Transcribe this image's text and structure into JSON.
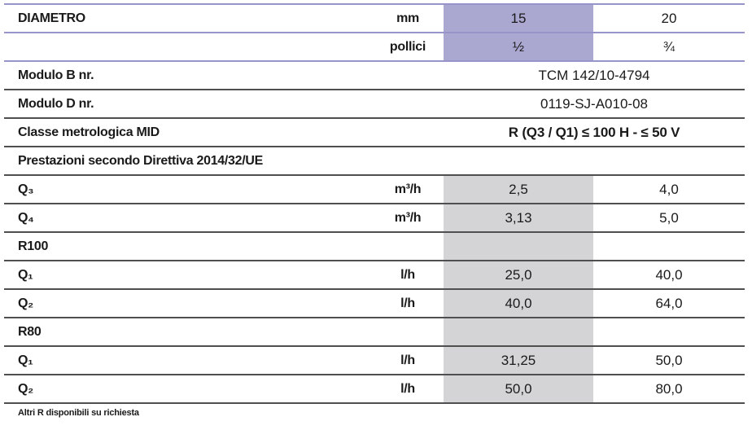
{
  "colors": {
    "header_highlight": "#aaa7d0",
    "column_highlight": "#d4d4d6",
    "header_line": "#9794c9",
    "row_line": "#4f4f4f",
    "text": "#1a1a1a"
  },
  "table": {
    "rows": [
      {
        "label": "DIAMETRO",
        "unit": "mm",
        "val1": "15",
        "val2": "20"
      },
      {
        "label": "",
        "unit": "pollici",
        "val1": "½",
        "val2": "¾"
      },
      {
        "label": "Modulo B nr.",
        "value": "TCM 142/10-4794"
      },
      {
        "label": "Modulo D nr.",
        "value": "0119-SJ-A010-08"
      },
      {
        "label": "Classe metrologica MID",
        "value": "R (Q3 / Q1) ≤ 100 H - ≤ 50 V"
      },
      {
        "label": "Prestazioni secondo Direttiva 2014/32/UE"
      },
      {
        "label": "Q₃",
        "unit": "m³/h",
        "val1": "2,5",
        "val2": "4,0"
      },
      {
        "label": "Q₄",
        "unit": "m³/h",
        "val1": "3,13",
        "val2": "5,0"
      },
      {
        "label": "R100"
      },
      {
        "label": "Q₁",
        "unit": "l/h",
        "val1": "25,0",
        "val2": "40,0"
      },
      {
        "label": "Q₂",
        "unit": "l/h",
        "val1": "40,0",
        "val2": "64,0"
      },
      {
        "label": "R80"
      },
      {
        "label": "Q₁",
        "unit": "l/h",
        "val1": "31,25",
        "val2": "50,0"
      },
      {
        "label": "Q₂",
        "unit": "l/h",
        "val1": "50,0",
        "val2": "80,0"
      }
    ]
  },
  "footer": {
    "note": "Altri R disponibili su richiesta"
  }
}
